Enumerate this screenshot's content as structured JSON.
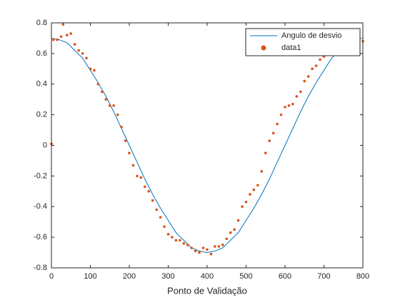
{
  "chart_data": {
    "type": "line",
    "xlabel": "Ponto de Validação",
    "xlim": [
      0,
      800
    ],
    "xticks": [
      0,
      100,
      200,
      300,
      400,
      500,
      600,
      700,
      800
    ],
    "ylim": [
      -0.8,
      0.8
    ],
    "yticks": [
      -0.8,
      -0.6,
      -0.4,
      -0.2,
      0,
      0.2,
      0.4,
      0.6,
      0.8
    ],
    "grid": false,
    "legend": "upper right",
    "series": [
      {
        "name": "Angulo de desvio",
        "type": "line",
        "color": "#0072bd",
        "x": [
          0,
          20,
          40,
          60,
          80,
          100,
          120,
          140,
          160,
          180,
          200,
          220,
          240,
          260,
          280,
          300,
          320,
          340,
          360,
          380,
          400,
          420,
          440,
          460,
          480,
          500,
          520,
          540,
          560,
          580,
          600,
          620,
          640,
          660,
          680,
          700,
          720,
          740,
          760,
          780,
          800
        ],
        "values": [
          0.7,
          0.69,
          0.67,
          0.62,
          0.57,
          0.49,
          0.41,
          0.32,
          0.22,
          0.11,
          0.0,
          -0.11,
          -0.22,
          -0.32,
          -0.41,
          -0.49,
          -0.57,
          -0.62,
          -0.67,
          -0.69,
          -0.7,
          -0.69,
          -0.67,
          -0.62,
          -0.57,
          -0.49,
          -0.41,
          -0.32,
          -0.22,
          -0.11,
          0.0,
          0.11,
          0.22,
          0.32,
          0.41,
          0.49,
          0.57,
          0.62,
          0.67,
          0.69,
          0.7
        ]
      },
      {
        "name": "data1",
        "type": "scatter",
        "color": "#d95319",
        "x": [
          0,
          5,
          15,
          25,
          30,
          40,
          50,
          60,
          70,
          80,
          90,
          100,
          110,
          120,
          130,
          140,
          150,
          160,
          170,
          180,
          190,
          200,
          210,
          220,
          230,
          240,
          250,
          260,
          270,
          280,
          290,
          300,
          310,
          320,
          330,
          340,
          350,
          360,
          370,
          380,
          390,
          400,
          410,
          420,
          430,
          440,
          450,
          460,
          470,
          480,
          490,
          500,
          510,
          520,
          530,
          540,
          550,
          560,
          570,
          580,
          590,
          600,
          610,
          620,
          630,
          640,
          650,
          660,
          670,
          680,
          690,
          700,
          710,
          720,
          730,
          740,
          750,
          760,
          770,
          780,
          790,
          800
        ],
        "values": [
          0.01,
          0.69,
          0.69,
          0.71,
          0.79,
          0.72,
          0.73,
          0.66,
          0.62,
          0.6,
          0.57,
          0.5,
          0.49,
          0.4,
          0.35,
          0.3,
          0.26,
          0.26,
          0.2,
          0.12,
          0.03,
          -0.05,
          -0.13,
          -0.2,
          -0.21,
          -0.27,
          -0.3,
          -0.36,
          -0.42,
          -0.47,
          -0.53,
          -0.58,
          -0.6,
          -0.62,
          -0.62,
          -0.64,
          -0.65,
          -0.67,
          -0.69,
          -0.7,
          -0.67,
          -0.68,
          -0.71,
          -0.66,
          -0.66,
          -0.65,
          -0.61,
          -0.57,
          -0.55,
          -0.49,
          -0.4,
          -0.37,
          -0.32,
          -0.29,
          -0.26,
          -0.17,
          -0.05,
          0.03,
          0.08,
          0.14,
          0.2,
          0.25,
          0.26,
          0.27,
          0.32,
          0.35,
          0.42,
          0.45,
          0.5,
          0.52,
          0.56,
          0.58,
          0.61,
          0.64,
          0.66,
          0.66,
          0.66,
          0.66,
          0.7,
          0.73,
          0.68,
          0.68
        ]
      }
    ]
  }
}
